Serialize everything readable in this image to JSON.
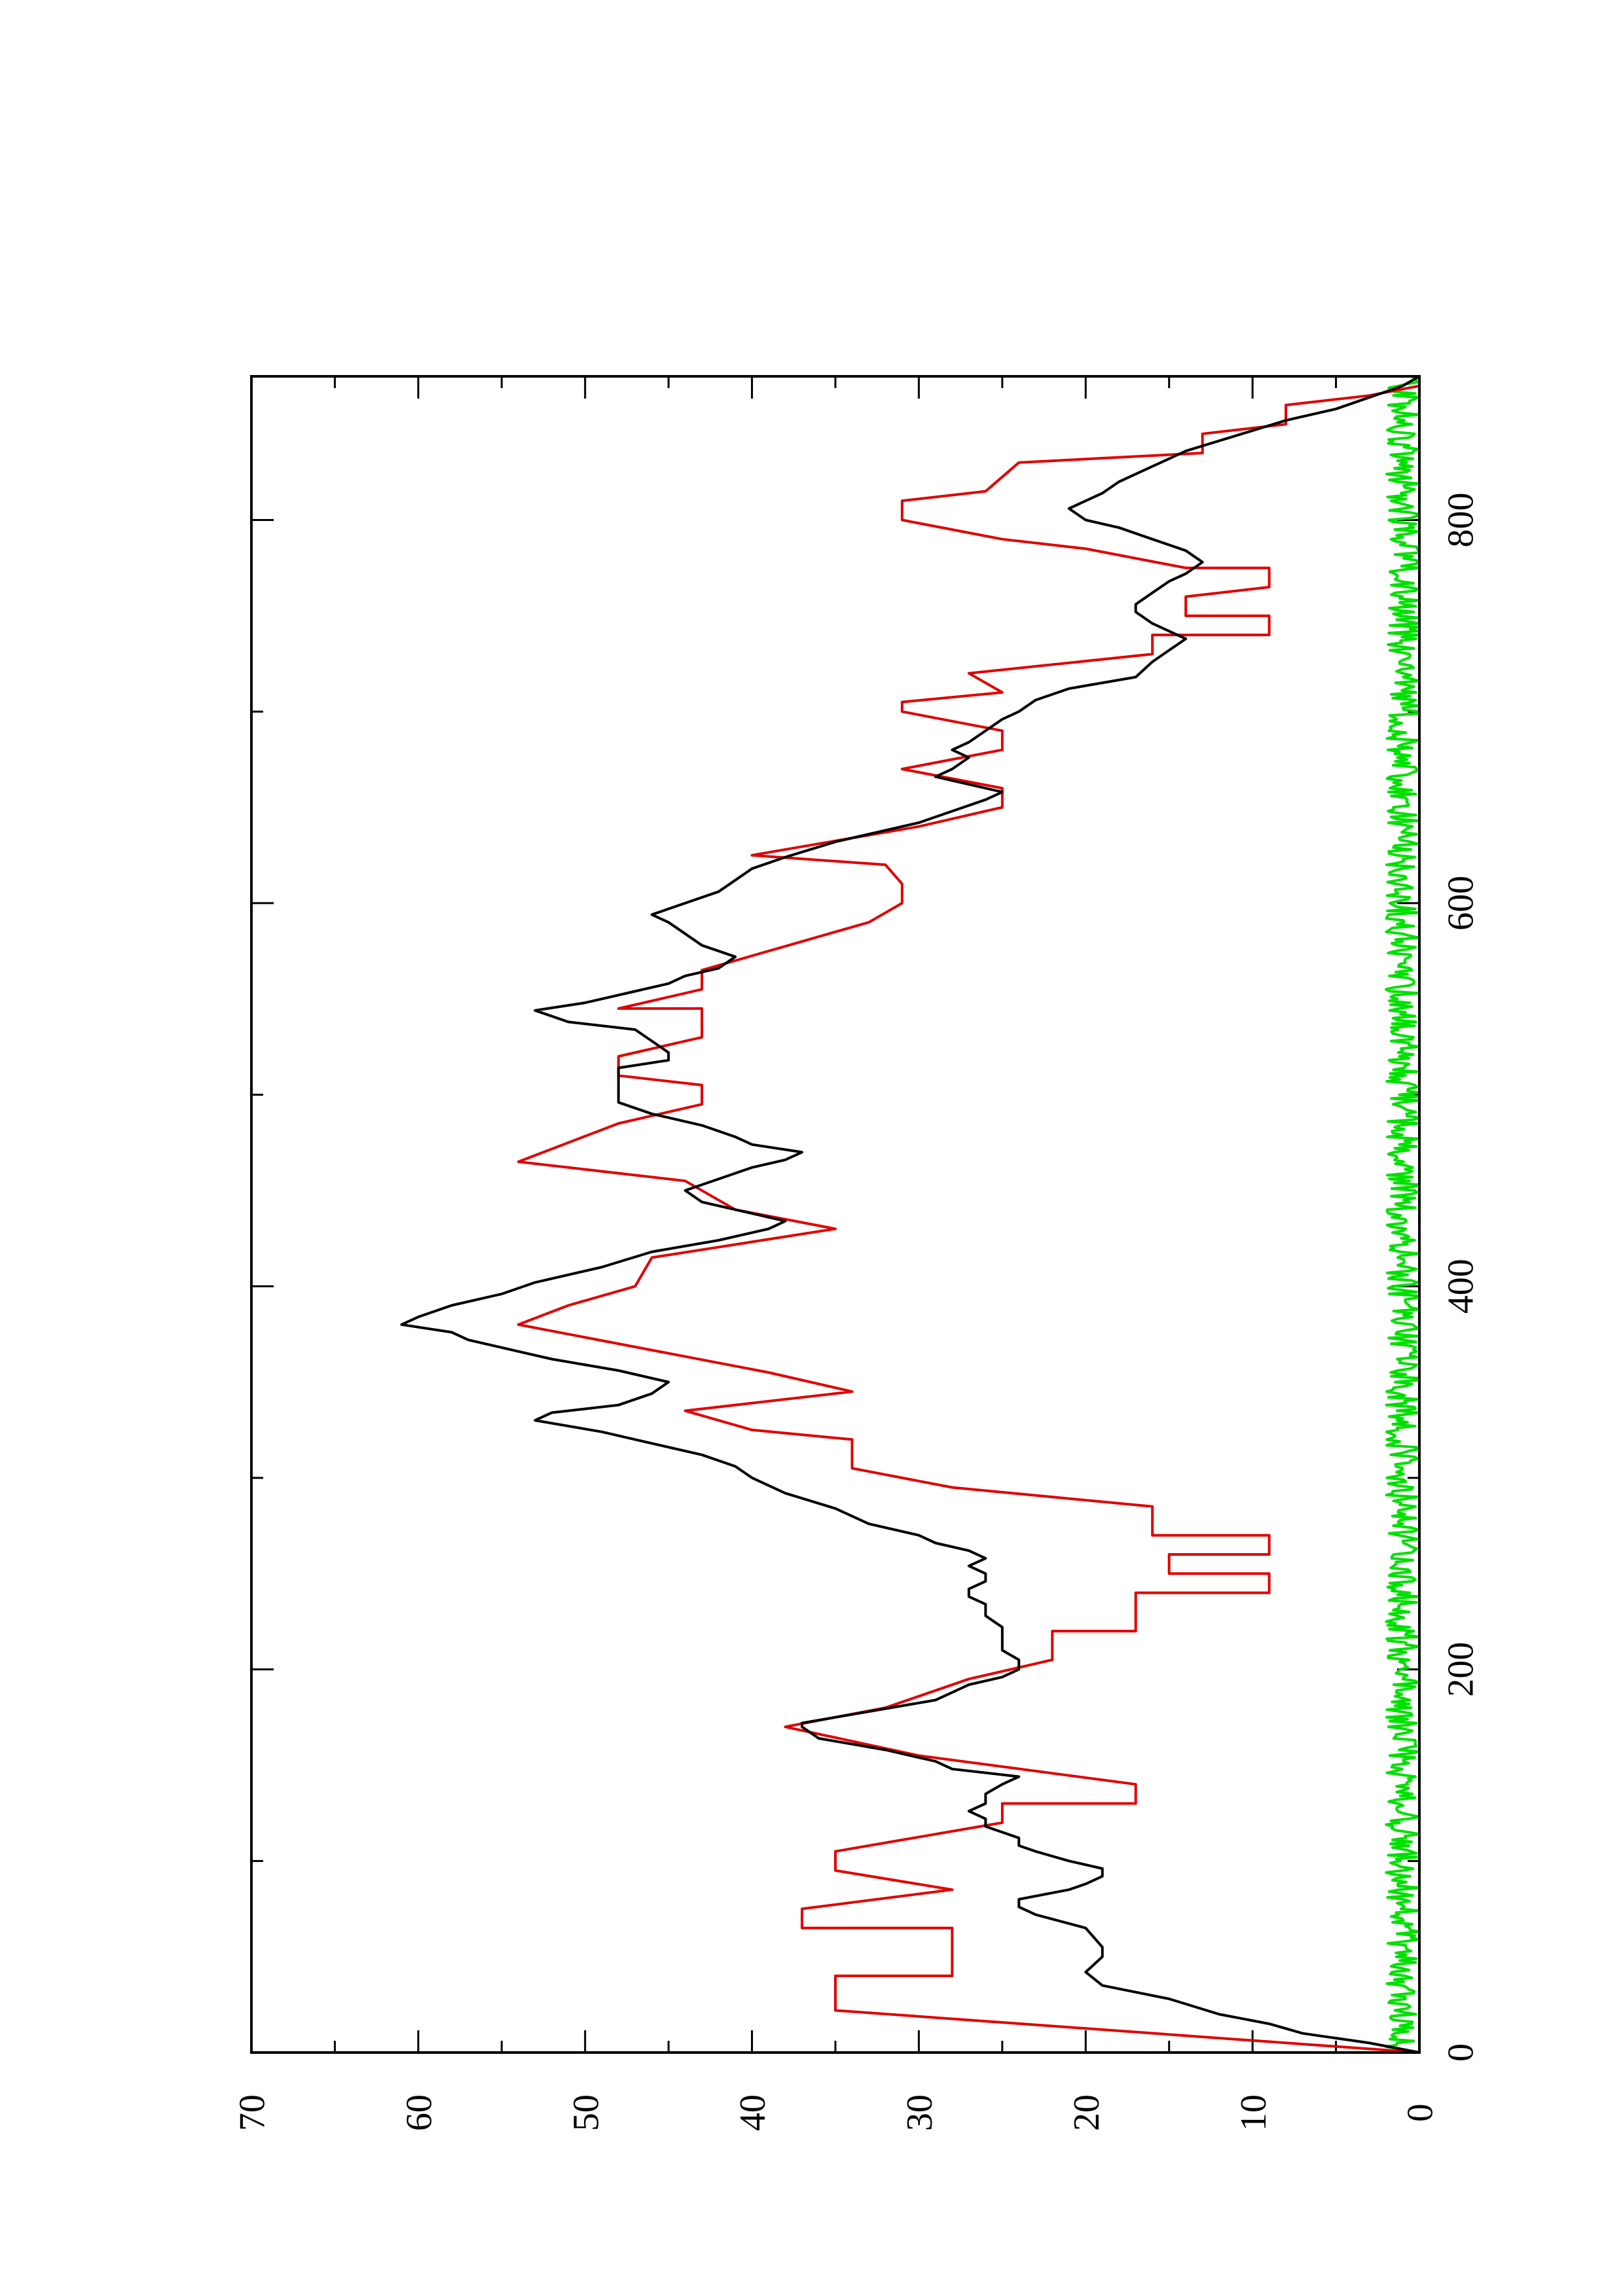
{
  "chart_data": {
    "type": "line",
    "orientation": "rotated-90-ccw",
    "title": "",
    "xlabel": "",
    "ylabel": "",
    "xlim": [
      0,
      875
    ],
    "ylim": [
      0,
      70
    ],
    "xticks_major": [
      0,
      200,
      400,
      600,
      800
    ],
    "xticks_minor": [
      100,
      300,
      500,
      700
    ],
    "yticks_major": [
      0,
      10,
      20,
      30,
      40,
      50,
      60,
      70
    ],
    "yticks_minor": [
      5,
      15,
      25,
      35,
      45,
      55,
      65
    ],
    "grid": false,
    "legend": "none",
    "series": [
      {
        "color": "#000000",
        "points": [
          [
            0,
            0
          ],
          [
            5,
            3
          ],
          [
            10,
            7
          ],
          [
            15,
            9
          ],
          [
            20,
            12
          ],
          [
            28,
            15
          ],
          [
            35,
            19
          ],
          [
            42,
            20
          ],
          [
            50,
            19
          ],
          [
            55,
            19
          ],
          [
            65,
            20
          ],
          [
            72,
            23
          ],
          [
            76,
            24
          ],
          [
            80,
            24
          ],
          [
            85,
            21
          ],
          [
            88,
            20
          ],
          [
            92,
            19
          ],
          [
            96,
            19
          ],
          [
            100,
            21
          ],
          [
            105,
            23
          ],
          [
            108,
            24
          ],
          [
            112,
            24
          ],
          [
            115,
            25
          ],
          [
            118,
            26
          ],
          [
            122,
            26
          ],
          [
            126,
            27
          ],
          [
            130,
            26
          ],
          [
            135,
            26
          ],
          [
            140,
            25
          ],
          [
            144,
            24
          ],
          [
            148,
            28
          ],
          [
            152,
            29
          ],
          [
            158,
            32
          ],
          [
            164,
            36
          ],
          [
            170,
            37
          ],
          [
            172,
            37
          ],
          [
            178,
            33
          ],
          [
            184,
            29
          ],
          [
            188,
            28
          ],
          [
            192,
            27
          ],
          [
            196,
            25
          ],
          [
            200,
            24
          ],
          [
            205,
            24
          ],
          [
            210,
            25
          ],
          [
            216,
            25
          ],
          [
            222,
            25
          ],
          [
            228,
            26
          ],
          [
            234,
            26
          ],
          [
            238,
            27
          ],
          [
            242,
            27
          ],
          [
            246,
            26
          ],
          [
            250,
            26
          ],
          [
            254,
            27
          ],
          [
            258,
            26
          ],
          [
            262,
            27
          ],
          [
            266,
            29
          ],
          [
            270,
            30
          ],
          [
            276,
            33
          ],
          [
            284,
            35
          ],
          [
            292,
            38
          ],
          [
            300,
            40
          ],
          [
            306,
            41
          ],
          [
            312,
            43
          ],
          [
            318,
            46
          ],
          [
            324,
            49
          ],
          [
            330,
            53
          ],
          [
            334,
            52
          ],
          [
            338,
            48
          ],
          [
            344,
            46
          ],
          [
            350,
            45
          ],
          [
            356,
            48
          ],
          [
            362,
            52
          ],
          [
            366,
            54
          ],
          [
            372,
            57
          ],
          [
            376,
            58
          ],
          [
            380,
            61
          ],
          [
            384,
            60
          ],
          [
            390,
            58
          ],
          [
            396,
            55
          ],
          [
            402,
            53
          ],
          [
            410,
            49
          ],
          [
            418,
            46
          ],
          [
            424,
            42
          ],
          [
            430,
            39
          ],
          [
            434,
            38
          ],
          [
            440,
            41
          ],
          [
            444,
            43
          ],
          [
            450,
            44
          ],
          [
            456,
            42
          ],
          [
            462,
            40
          ],
          [
            466,
            38
          ],
          [
            470,
            37
          ],
          [
            474,
            40
          ],
          [
            478,
            41
          ],
          [
            484,
            43
          ],
          [
            490,
            46
          ],
          [
            496,
            48
          ],
          [
            502,
            48
          ],
          [
            508,
            48
          ],
          [
            514,
            48
          ],
          [
            518,
            45
          ],
          [
            522,
            45
          ],
          [
            528,
            46
          ],
          [
            534,
            47
          ],
          [
            538,
            51
          ],
          [
            544,
            53
          ],
          [
            548,
            50
          ],
          [
            554,
            47
          ],
          [
            558,
            45
          ],
          [
            562,
            44
          ],
          [
            566,
            42
          ],
          [
            572,
            41
          ],
          [
            578,
            43
          ],
          [
            584,
            44
          ],
          [
            590,
            45
          ],
          [
            594,
            46
          ],
          [
            600,
            44
          ],
          [
            606,
            42
          ],
          [
            612,
            41
          ],
          [
            618,
            40
          ],
          [
            624,
            38
          ],
          [
            632,
            35
          ],
          [
            636,
            33
          ],
          [
            642,
            30
          ],
          [
            648,
            28
          ],
          [
            654,
            26
          ],
          [
            658,
            25
          ],
          [
            662,
            27
          ],
          [
            666,
            29
          ],
          [
            670,
            28
          ],
          [
            676,
            27
          ],
          [
            680,
            28
          ],
          [
            684,
            27
          ],
          [
            690,
            26
          ],
          [
            696,
            25
          ],
          [
            700,
            24
          ],
          [
            706,
            23
          ],
          [
            712,
            21
          ],
          [
            718,
            17
          ],
          [
            726,
            16
          ],
          [
            732,
            15
          ],
          [
            738,
            14
          ],
          [
            742,
            15
          ],
          [
            746,
            16
          ],
          [
            752,
            17
          ],
          [
            756,
            17
          ],
          [
            762,
            16
          ],
          [
            768,
            15
          ],
          [
            772,
            14
          ],
          [
            778,
            13
          ],
          [
            784,
            14
          ],
          [
            790,
            16
          ],
          [
            796,
            18
          ],
          [
            800,
            20
          ],
          [
            806,
            21
          ],
          [
            810,
            20
          ],
          [
            814,
            19
          ],
          [
            820,
            18
          ],
          [
            828,
            16
          ],
          [
            836,
            14
          ],
          [
            844,
            11
          ],
          [
            852,
            8
          ],
          [
            858,
            5
          ],
          [
            864,
            3
          ],
          [
            870,
            1
          ],
          [
            875,
            0
          ]
        ]
      },
      {
        "color": "#e00000",
        "points": [
          [
            0,
            0
          ],
          [
            22,
            35
          ],
          [
            40,
            35
          ],
          [
            40,
            28
          ],
          [
            65,
            28
          ],
          [
            65,
            37
          ],
          [
            75,
            37
          ],
          [
            85,
            28
          ],
          [
            95,
            35
          ],
          [
            105,
            35
          ],
          [
            120,
            25
          ],
          [
            130,
            25
          ],
          [
            130,
            17
          ],
          [
            140,
            17
          ],
          [
            155,
            30
          ],
          [
            170,
            38
          ],
          [
            180,
            32
          ],
          [
            195,
            27
          ],
          [
            205,
            22
          ],
          [
            220,
            22
          ],
          [
            220,
            17
          ],
          [
            240,
            17
          ],
          [
            240,
            9
          ],
          [
            250,
            9
          ],
          [
            250,
            15
          ],
          [
            260,
            15
          ],
          [
            260,
            9
          ],
          [
            270,
            9
          ],
          [
            270,
            16
          ],
          [
            285,
            16
          ],
          [
            295,
            28
          ],
          [
            305,
            34
          ],
          [
            320,
            34
          ],
          [
            325,
            40
          ],
          [
            335,
            44
          ],
          [
            345,
            34
          ],
          [
            355,
            39
          ],
          [
            365,
            45
          ],
          [
            380,
            54
          ],
          [
            390,
            51
          ],
          [
            400,
            47
          ],
          [
            415,
            46
          ],
          [
            430,
            35
          ],
          [
            440,
            41
          ],
          [
            455,
            44
          ],
          [
            465,
            54
          ],
          [
            475,
            51
          ],
          [
            485,
            48
          ],
          [
            495,
            43
          ],
          [
            505,
            43
          ],
          [
            510,
            48
          ],
          [
            520,
            48
          ],
          [
            530,
            43
          ],
          [
            545,
            43
          ],
          [
            545,
            48
          ],
          [
            555,
            43
          ],
          [
            565,
            43
          ],
          [
            580,
            37
          ],
          [
            590,
            33
          ],
          [
            600,
            31
          ],
          [
            610,
            31
          ],
          [
            620,
            32
          ],
          [
            625,
            40
          ],
          [
            640,
            30
          ],
          [
            650,
            25
          ],
          [
            660,
            25
          ],
          [
            670,
            31
          ],
          [
            680,
            25
          ],
          [
            690,
            25
          ],
          [
            700,
            31
          ],
          [
            705,
            31
          ],
          [
            710,
            25
          ],
          [
            720,
            27
          ],
          [
            730,
            16
          ],
          [
            740,
            16
          ],
          [
            740,
            9
          ],
          [
            750,
            9
          ],
          [
            750,
            14
          ],
          [
            760,
            14
          ],
          [
            765,
            9
          ],
          [
            775,
            9
          ],
          [
            775,
            14
          ],
          [
            785,
            20
          ],
          [
            790,
            25
          ],
          [
            800,
            31
          ],
          [
            810,
            31
          ],
          [
            815,
            26
          ],
          [
            830,
            24
          ],
          [
            835,
            13
          ],
          [
            845,
            13
          ],
          [
            850,
            8
          ],
          [
            860,
            8
          ],
          [
            865,
            3
          ],
          [
            870,
            0
          ],
          [
            875,
            0
          ]
        ]
      },
      {
        "color": "#00e000",
        "noise": true,
        "amplitude_range": [
          0,
          2
        ],
        "samples": 875
      }
    ]
  }
}
